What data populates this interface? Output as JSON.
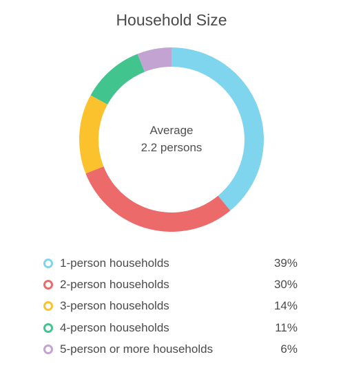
{
  "chart_data": {
    "type": "pie",
    "title": "Household Size",
    "center_label": {
      "line1": "Average",
      "line2": "2.2 persons"
    },
    "categories": [
      "1-person households",
      "2-person households",
      "3-person households",
      "4-person households",
      "5-person or more households"
    ],
    "values": [
      39,
      30,
      14,
      11,
      6
    ],
    "value_labels": [
      "39%",
      "30%",
      "14%",
      "11%",
      "6%"
    ],
    "colors": [
      "#7fd4ee",
      "#ec6a6a",
      "#fcc22d",
      "#42c48e",
      "#c3a3d2"
    ],
    "legend_position": "bottom"
  }
}
